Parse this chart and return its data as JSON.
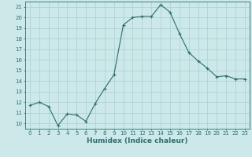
{
  "x": [
    0,
    1,
    2,
    3,
    4,
    5,
    6,
    7,
    8,
    9,
    10,
    11,
    12,
    13,
    14,
    15,
    16,
    17,
    18,
    19,
    20,
    21,
    22,
    23
  ],
  "y": [
    11.7,
    12.0,
    11.6,
    9.8,
    10.9,
    10.8,
    10.2,
    11.9,
    13.3,
    14.6,
    19.3,
    20.0,
    20.1,
    20.1,
    21.2,
    20.5,
    18.5,
    16.7,
    15.9,
    15.2,
    14.4,
    14.5,
    14.2,
    14.2
  ],
  "line_color": "#2e6e6e",
  "marker": "+",
  "marker_size": 3,
  "bg_color": "#cce8e8",
  "grid_color": "#aad0d0",
  "axis_color": "#2e6e6e",
  "xlabel": "Humidex (Indice chaleur)",
  "xlim": [
    -0.5,
    23.5
  ],
  "ylim": [
    9.5,
    21.5
  ],
  "yticks": [
    10,
    11,
    12,
    13,
    14,
    15,
    16,
    17,
    18,
    19,
    20,
    21
  ],
  "xticks": [
    0,
    1,
    2,
    3,
    4,
    5,
    6,
    7,
    8,
    9,
    10,
    11,
    12,
    13,
    14,
    15,
    16,
    17,
    18,
    19,
    20,
    21,
    22,
    23
  ],
  "tick_fontsize": 5.0,
  "label_fontsize": 6.5,
  "line_width": 0.8,
  "marker_edge_width": 0.8
}
